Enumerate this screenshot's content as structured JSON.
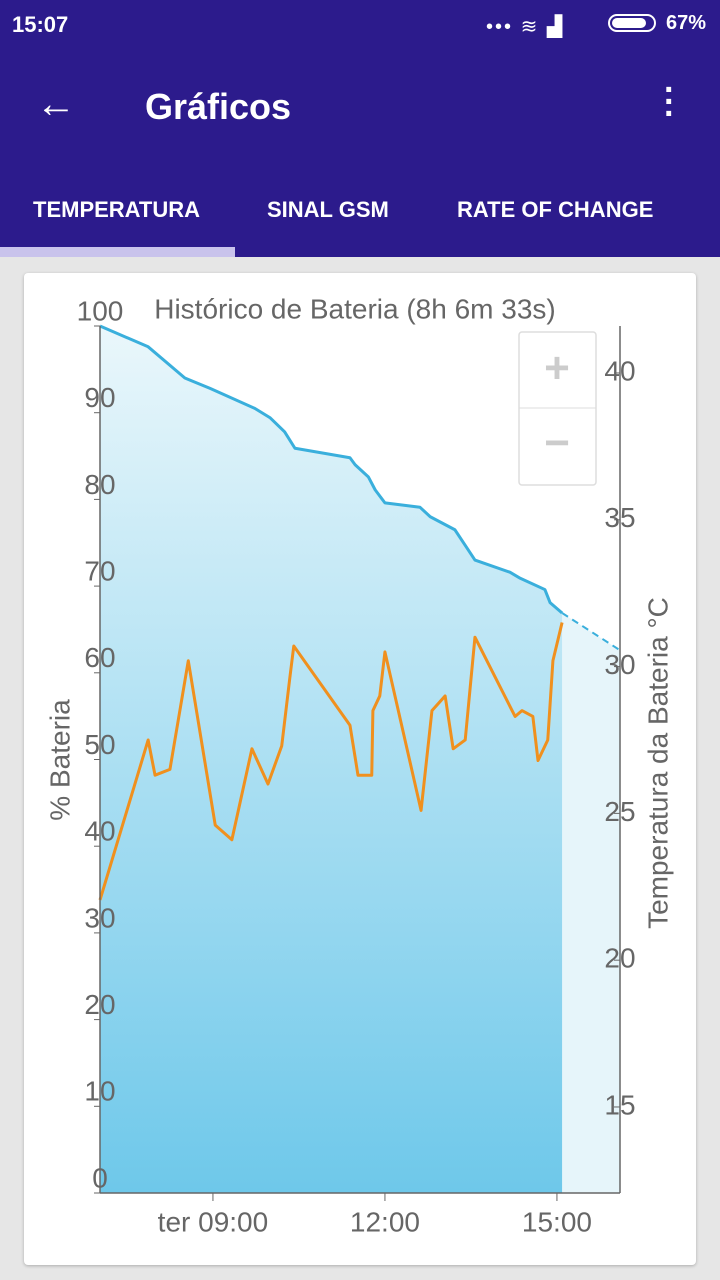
{
  "status_bar": {
    "time": "15:07",
    "battery": "67%"
  },
  "app_bar": {
    "title": "Gráficos"
  },
  "tabs": [
    "TEMPERATURA",
    "SINAL GSM",
    "RATE OF CHANGE"
  ],
  "zoom": {
    "zoom_in": "+",
    "zoom_out": "−"
  },
  "chart_data": {
    "type": "line",
    "title": "Histórico de Bateria (8h 6m 33s)",
    "y_label": "% Bateria",
    "y2_label": "Temperatura da Bateria °C",
    "xlim": [
      7.03,
      16.1
    ],
    "xticks": [
      {
        "value": 9,
        "label": "ter 09:00"
      },
      {
        "value": 12,
        "label": "12:00"
      },
      {
        "value": 15,
        "label": "15:00"
      }
    ],
    "ylim": [
      0,
      100
    ],
    "yticks": [
      0,
      10,
      20,
      30,
      40,
      50,
      60,
      70,
      80,
      90,
      100
    ],
    "y2lim": [
      12.07,
      41.6
    ],
    "y2ticks": [
      15,
      20,
      25,
      30,
      35,
      40
    ],
    "grid": false,
    "series": [
      {
        "color": "#3aafdc",
        "fill": true,
        "x": [
          7.03,
          7.87,
          8.51,
          8.95,
          9.73,
          10.0,
          10.25,
          10.43,
          11.39,
          11.48,
          11.71,
          11.83,
          12.0,
          12.61,
          12.79,
          13.22,
          13.4,
          13.57,
          14.18,
          14.36,
          14.79,
          14.88,
          15.09
        ],
        "values": [
          100,
          97.6,
          94.0,
          92.8,
          90.5,
          89.4,
          87.8,
          85.9,
          84.8,
          84.0,
          82.6,
          81.1,
          79.6,
          79.1,
          78.0,
          76.5,
          74.7,
          73.0,
          71.6,
          70.9,
          69.6,
          68.1,
          66.9
        ]
      },
      {
        "color": "#f0901e",
        "axis": "y2",
        "x": [
          7.03,
          7.87,
          7.99,
          8.25,
          8.57,
          9.04,
          9.33,
          9.68,
          9.96,
          10.2,
          10.34,
          10.41,
          11.39,
          11.53,
          11.77,
          11.79,
          11.91,
          12.0,
          12.63,
          12.82,
          13.05,
          13.19,
          13.4,
          13.57,
          14.27,
          14.39,
          14.58,
          14.67,
          14.84,
          14.93,
          15.09
        ],
        "values": [
          22.05,
          27.5,
          26.3,
          26.5,
          30.2,
          24.6,
          24.1,
          27.2,
          26.0,
          27.3,
          29.6,
          30.7,
          28.0,
          26.3,
          26.3,
          28.5,
          29.0,
          30.5,
          25.1,
          28.5,
          29.0,
          27.2,
          27.5,
          31.0,
          28.3,
          28.5,
          28.3,
          26.8,
          27.5,
          30.2,
          31.5
        ]
      }
    ],
    "projection": {
      "color": "#3aafdc",
      "x": [
        15.09,
        16.1
      ],
      "values": [
        66.9,
        62.6
      ]
    }
  }
}
